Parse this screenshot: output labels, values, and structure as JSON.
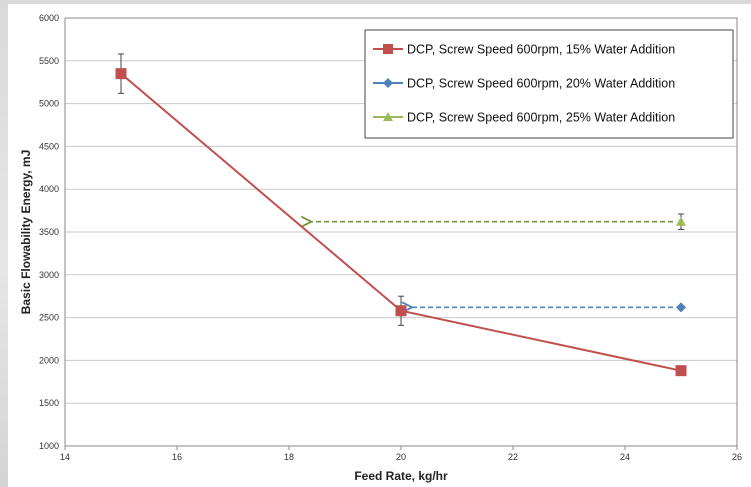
{
  "chart_data": {
    "type": "line",
    "xlabel": "Feed Rate, kg/hr",
    "ylabel": "Basic Flowability Energy, mJ",
    "xlim": [
      14,
      26
    ],
    "ylim": [
      1000,
      6000
    ],
    "xticks": [
      14,
      16,
      18,
      20,
      22,
      24,
      26
    ],
    "yticks": [
      1000,
      1500,
      2000,
      2500,
      3000,
      3500,
      4000,
      4500,
      5000,
      5500,
      6000
    ],
    "grid": "horizontal",
    "legend_position": "top-right",
    "series": [
      {
        "name": "DCP, Screw Speed 600rpm, 15% Water Addition",
        "color": "#c0504d",
        "marker": "square",
        "x": [
          15,
          20,
          25
        ],
        "y": [
          5350,
          2580,
          1880
        ],
        "err": [
          230,
          170,
          0
        ]
      },
      {
        "name": "DCP, Screw Speed 600rpm, 20% Water Addition",
        "color": "#4f81bd",
        "marker": "diamond",
        "x": [
          25
        ],
        "y": [
          2620
        ],
        "err": [
          0
        ]
      },
      {
        "name": "DCP, Screw Speed 600rpm, 25% Water Addition",
        "color": "#9bbb59",
        "marker": "triangle",
        "x": [
          25
        ],
        "y": [
          3620
        ],
        "err": [
          90
        ]
      }
    ],
    "annotations": [
      {
        "type": "dashed-arrow",
        "color": "#4f81bd",
        "from": [
          25,
          2620
        ],
        "to": [
          20.2,
          2620
        ]
      },
      {
        "type": "dashed-arrow",
        "color": "#77933c",
        "from": [
          25,
          3620
        ],
        "to": [
          18.4,
          3620
        ]
      }
    ]
  }
}
